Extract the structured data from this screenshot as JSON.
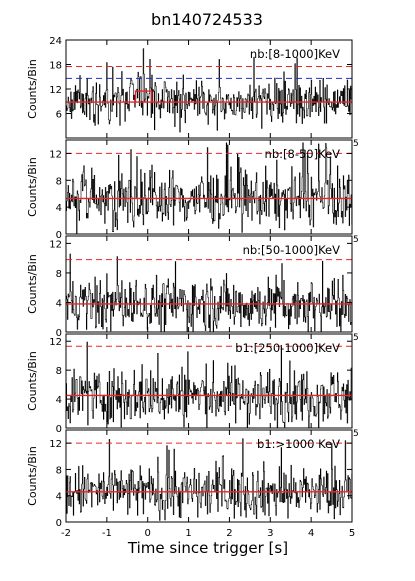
{
  "title": "bn140724533",
  "xlabel": "Time since trigger [s]",
  "chart_data": {
    "type": "line",
    "title": "bn140724533",
    "xlabel": "Time since trigger [s]",
    "ylabel": "Counts/Bin",
    "xlim": [
      -2,
      5
    ],
    "x_ticks": [
      -2,
      -1,
      0,
      1,
      2,
      3,
      4,
      5
    ],
    "bin_width": 0.016,
    "panels": [
      {
        "label": "nb:[8-1000]KeV",
        "ylabel": "Counts/Bin",
        "ylim": [
          0,
          24
        ],
        "y_ticks": [
          6,
          12,
          18,
          24
        ],
        "y_tick_labels": [
          "6",
          "12",
          "18",
          "24"
        ],
        "mean_level": 8.8,
        "threshold_red": 17.5,
        "threshold_blue": 14.6,
        "peak_window": {
          "x_start": -0.3,
          "x_end": 0.1,
          "level": 11.5
        },
        "extra_tick_label": ""
      },
      {
        "label": "nb:[8-50]KeV",
        "ylabel": "Counts/Bin",
        "ylim": [
          0,
          14
        ],
        "y_ticks": [
          0,
          4,
          8,
          12
        ],
        "y_tick_labels": [
          "0",
          "4",
          "8",
          "12"
        ],
        "mean_level": 5.3,
        "threshold_red": 12.0,
        "extra_tick_label": "5"
      },
      {
        "label": "nb:[50-1000]KeV",
        "ylabel": "Counts/Bin",
        "ylim": [
          0,
          13
        ],
        "y_ticks": [
          0,
          4,
          8,
          12
        ],
        "y_tick_labels": [
          "0",
          "4",
          "8",
          "12"
        ],
        "mean_level": 3.8,
        "threshold_red": 9.8,
        "extra_tick_label": "5"
      },
      {
        "label": "b1:[250-1000]KeV",
        "ylabel": "Counts/Bin",
        "ylim": [
          0,
          13
        ],
        "y_ticks": [
          0,
          4,
          8,
          12
        ],
        "y_tick_labels": [
          "0",
          "4",
          "8",
          "12"
        ],
        "mean_level": 4.5,
        "threshold_red": 11.3,
        "extra_tick_label": "5"
      },
      {
        "label": "b1:>1000 KeV",
        "ylabel": "Counts/Bin",
        "ylim": [
          0,
          14
        ],
        "y_ticks": [
          0,
          4,
          8,
          12
        ],
        "y_tick_labels": [
          "0",
          "4",
          "8",
          "12"
        ],
        "mean_level": 4.6,
        "threshold_red": 12.0,
        "extra_tick_label": "5"
      }
    ]
  },
  "colors": {
    "series": "#000000",
    "threshold_red": "#e8262a",
    "threshold_blue": "#2a2acc",
    "mean": "#e8262a"
  }
}
